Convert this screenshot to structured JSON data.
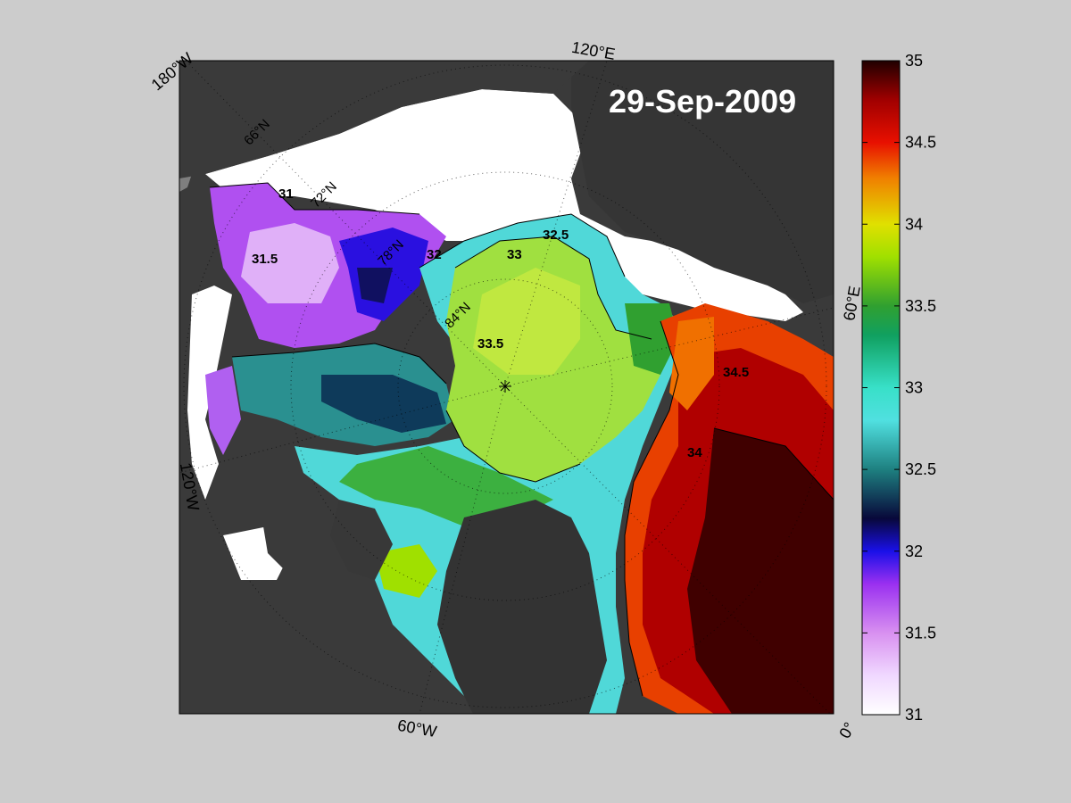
{
  "map": {
    "date": "29-Sep-2009",
    "longitude_labels": [
      "180°W",
      "120°E",
      "60°E",
      "0°",
      "60°W",
      "120°W"
    ],
    "latitude_labels": [
      "66°N",
      "72°N",
      "78°N",
      "84°N"
    ],
    "contour_labels": [
      "31",
      "31.5",
      "32",
      "32.5",
      "33",
      "33.5",
      "34",
      "34.5"
    ]
  },
  "colorbar": {
    "min": 31,
    "max": 35,
    "ticks": [
      "35",
      "34.5",
      "34",
      "33.5",
      "33",
      "32.5",
      "32",
      "31.5",
      "31"
    ],
    "colors": {
      "31": "#ffffff",
      "31.5": "#d890f0",
      "32": "#1a10e8",
      "32.5": "#1e8080",
      "33": "#38e0c8",
      "33.5": "#30a030",
      "34": "#e0e000",
      "34.5": "#e81000",
      "35": "#200000"
    }
  }
}
